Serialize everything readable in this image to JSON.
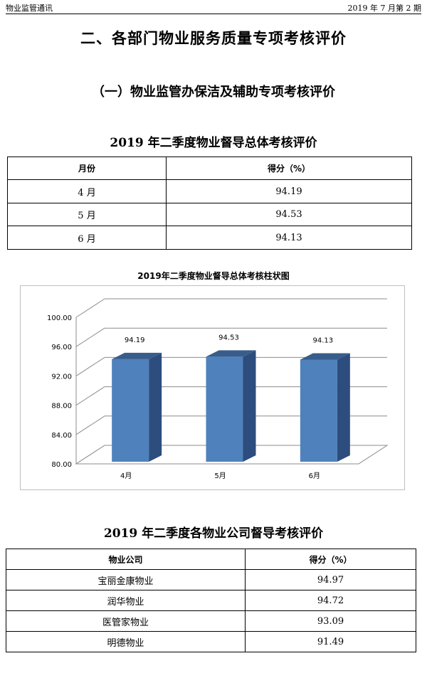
{
  "header": {
    "left": "物业监管通讯",
    "right": "2019 年 7 月第 2 期"
  },
  "section_title": "二、各部门物业服务质量专项考核评价",
  "subsection_title": "（一）物业监管办保洁及辅助专项考核评价",
  "table1": {
    "title": "2019 年二季度物业督导总体考核评价",
    "headers": [
      "月份",
      "得分（%）"
    ],
    "rows": [
      [
        "4 月",
        "94.19"
      ],
      [
        "5 月",
        "94.53"
      ],
      [
        "6 月",
        "94.13"
      ]
    ]
  },
  "chart_data": {
    "type": "bar",
    "title": "2019年二季度物业督导总体考核柱状图",
    "categories": [
      "4月",
      "5月",
      "6月"
    ],
    "values": [
      94.19,
      94.53,
      94.13
    ],
    "data_labels": [
      "94.19",
      "94.53",
      "94.13"
    ],
    "ylim": [
      80,
      100
    ],
    "yticks": [
      "80.00",
      "84.00",
      "88.00",
      "92.00",
      "96.00",
      "100.00"
    ],
    "grid": true,
    "bar_color": "#4f81bd",
    "bar_side_color": "#2c4d7d",
    "bar_top_color": "#385d8a"
  },
  "table2": {
    "title": "2019 年二季度各物业公司督导考核评价",
    "headers": [
      "物业公司",
      "得分（%）"
    ],
    "rows": [
      [
        "宝丽金康物业",
        "94.97"
      ],
      [
        "润华物业",
        "94.72"
      ],
      [
        "医管家物业",
        "93.09"
      ],
      [
        "明德物业",
        "91.49"
      ]
    ]
  }
}
